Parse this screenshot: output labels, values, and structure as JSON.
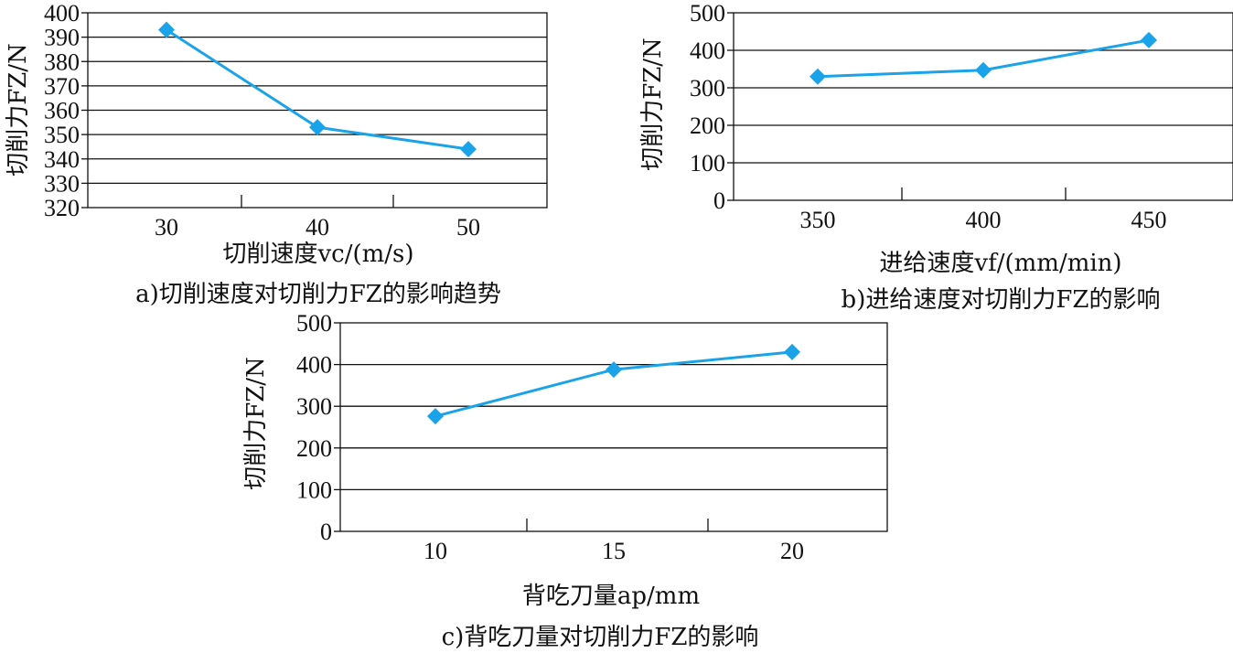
{
  "chart_data": [
    {
      "type": "line",
      "caption": "a)切削速度对切削力FZ的影响趋势",
      "xlabel": "切削速度vc/(m/s)",
      "ylabel": "切削力FZ/N",
      "categories": [
        "30",
        "40",
        "50"
      ],
      "x": [
        30,
        40,
        50
      ],
      "values": [
        393,
        353,
        344
      ],
      "ylim": [
        320,
        400
      ],
      "yticks": [
        "320",
        "330",
        "340",
        "350",
        "360",
        "370",
        "380",
        "390",
        "400"
      ],
      "grid": true,
      "series_color": "#1aa3e8",
      "marker": "diamond"
    },
    {
      "type": "line",
      "caption": "b)进给速度对切削力FZ的影响",
      "xlabel": "进给速度vf/(mm/min)",
      "ylabel": "切削力FZ/N",
      "categories": [
        "350",
        "400",
        "450"
      ],
      "x": [
        350,
        400,
        450
      ],
      "values": [
        330,
        347,
        427
      ],
      "ylim": [
        0,
        500
      ],
      "yticks": [
        "0",
        "100",
        "200",
        "300",
        "400",
        "500"
      ],
      "grid": true,
      "series_color": "#1aa3e8",
      "marker": "diamond"
    },
    {
      "type": "line",
      "caption": "c)背吃刀量对切削力FZ的影响",
      "xlabel": "背吃刀量ap/mm",
      "ylabel": "切削力FZ/N",
      "categories": [
        "10",
        "15",
        "20"
      ],
      "x": [
        10,
        15,
        20
      ],
      "values": [
        276,
        388,
        430
      ],
      "ylim": [
        0,
        500
      ],
      "yticks": [
        "0",
        "100",
        "200",
        "300",
        "400",
        "500"
      ],
      "grid": true,
      "series_color": "#1aa3e8",
      "marker": "diamond"
    }
  ]
}
